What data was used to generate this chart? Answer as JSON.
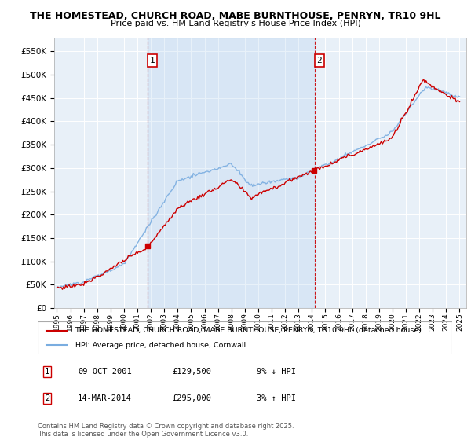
{
  "title": "THE HOMESTEAD, CHURCH ROAD, MABE BURNTHOUSE, PENRYN, TR10 9HL",
  "subtitle": "Price paid vs. HM Land Registry's House Price Index (HPI)",
  "ytick_values": [
    0,
    50000,
    100000,
    150000,
    200000,
    250000,
    300000,
    350000,
    400000,
    450000,
    500000,
    550000
  ],
  "ylim": [
    0,
    580000
  ],
  "x_start_year": 1995,
  "x_end_year": 2025,
  "marker1": {
    "x": 2001.77,
    "label": "1",
    "date": "09-OCT-2001",
    "price": "£129,500",
    "change": "9% ↓ HPI"
  },
  "marker2": {
    "x": 2014.2,
    "label": "2",
    "date": "14-MAR-2014",
    "price": "£295,000",
    "change": "3% ↑ HPI"
  },
  "legend_line1": "THE HOMESTEAD, CHURCH ROAD, MABE BURNTHOUSE, PENRYN, TR10 9HL (detached house)",
  "legend_line2": "HPI: Average price, detached house, Cornwall",
  "footer": "Contains HM Land Registry data © Crown copyright and database right 2025.\nThis data is licensed under the Open Government Licence v3.0.",
  "line_color_red": "#cc0000",
  "line_color_blue": "#7aade0",
  "shade_color": "#ccddf0",
  "plot_bg": "#e8f0f8",
  "grid_color": "#ffffff"
}
